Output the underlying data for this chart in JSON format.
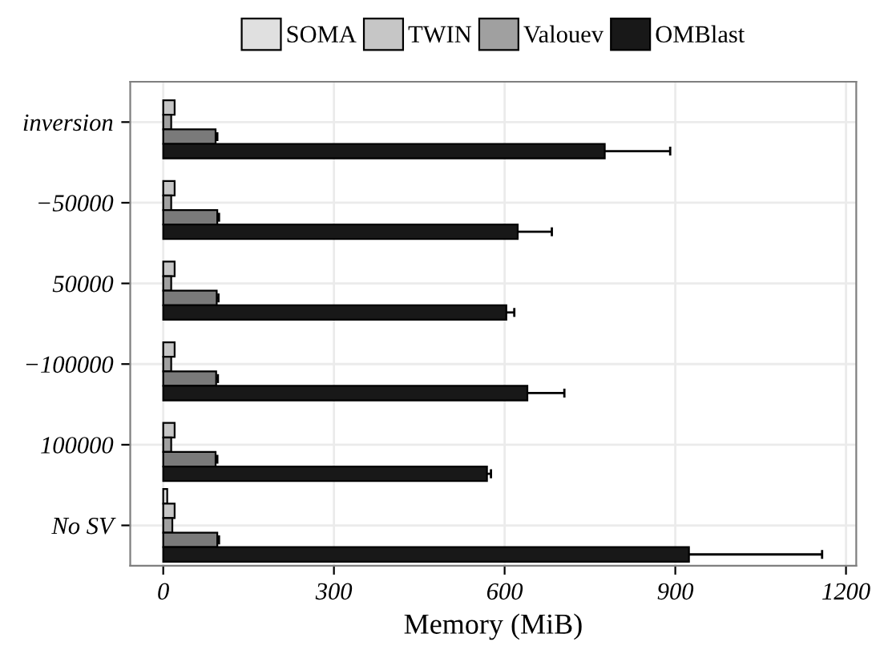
{
  "chart_data": {
    "type": "bar",
    "orientation": "horizontal",
    "xlabel": "Memory (MiB)",
    "categories": [
      "inversion",
      "−50000",
      "50000",
      "−100000",
      "100000",
      "No SV"
    ],
    "series": [
      {
        "name": "SOMA",
        "color": "#e0e0e0",
        "values": [
          null,
          null,
          null,
          null,
          null,
          7
        ]
      },
      {
        "name": "TWIN",
        "color": "#c6c6c6",
        "values": [
          20,
          20,
          20,
          20,
          20,
          20
        ]
      },
      {
        "name": "Valouev",
        "color": "#a0a0a0",
        "values": [
          14,
          14,
          14,
          14,
          14,
          16
        ]
      },
      {
        "color": "#7a7a7a",
        "values": [
          92,
          95,
          94,
          93,
          92,
          95
        ],
        "errors": [
          3,
          3,
          3,
          3,
          3,
          3
        ]
      },
      {
        "name": "OMBlast",
        "color": "#181818",
        "values": [
          776,
          623,
          603,
          640,
          569,
          924
        ],
        "errors": [
          115,
          60,
          14,
          65,
          7,
          234
        ]
      }
    ],
    "xlim": [
      -58,
      1218
    ],
    "xticks": [
      0,
      300,
      600,
      900,
      1200
    ],
    "grid": true,
    "legend": "top"
  }
}
